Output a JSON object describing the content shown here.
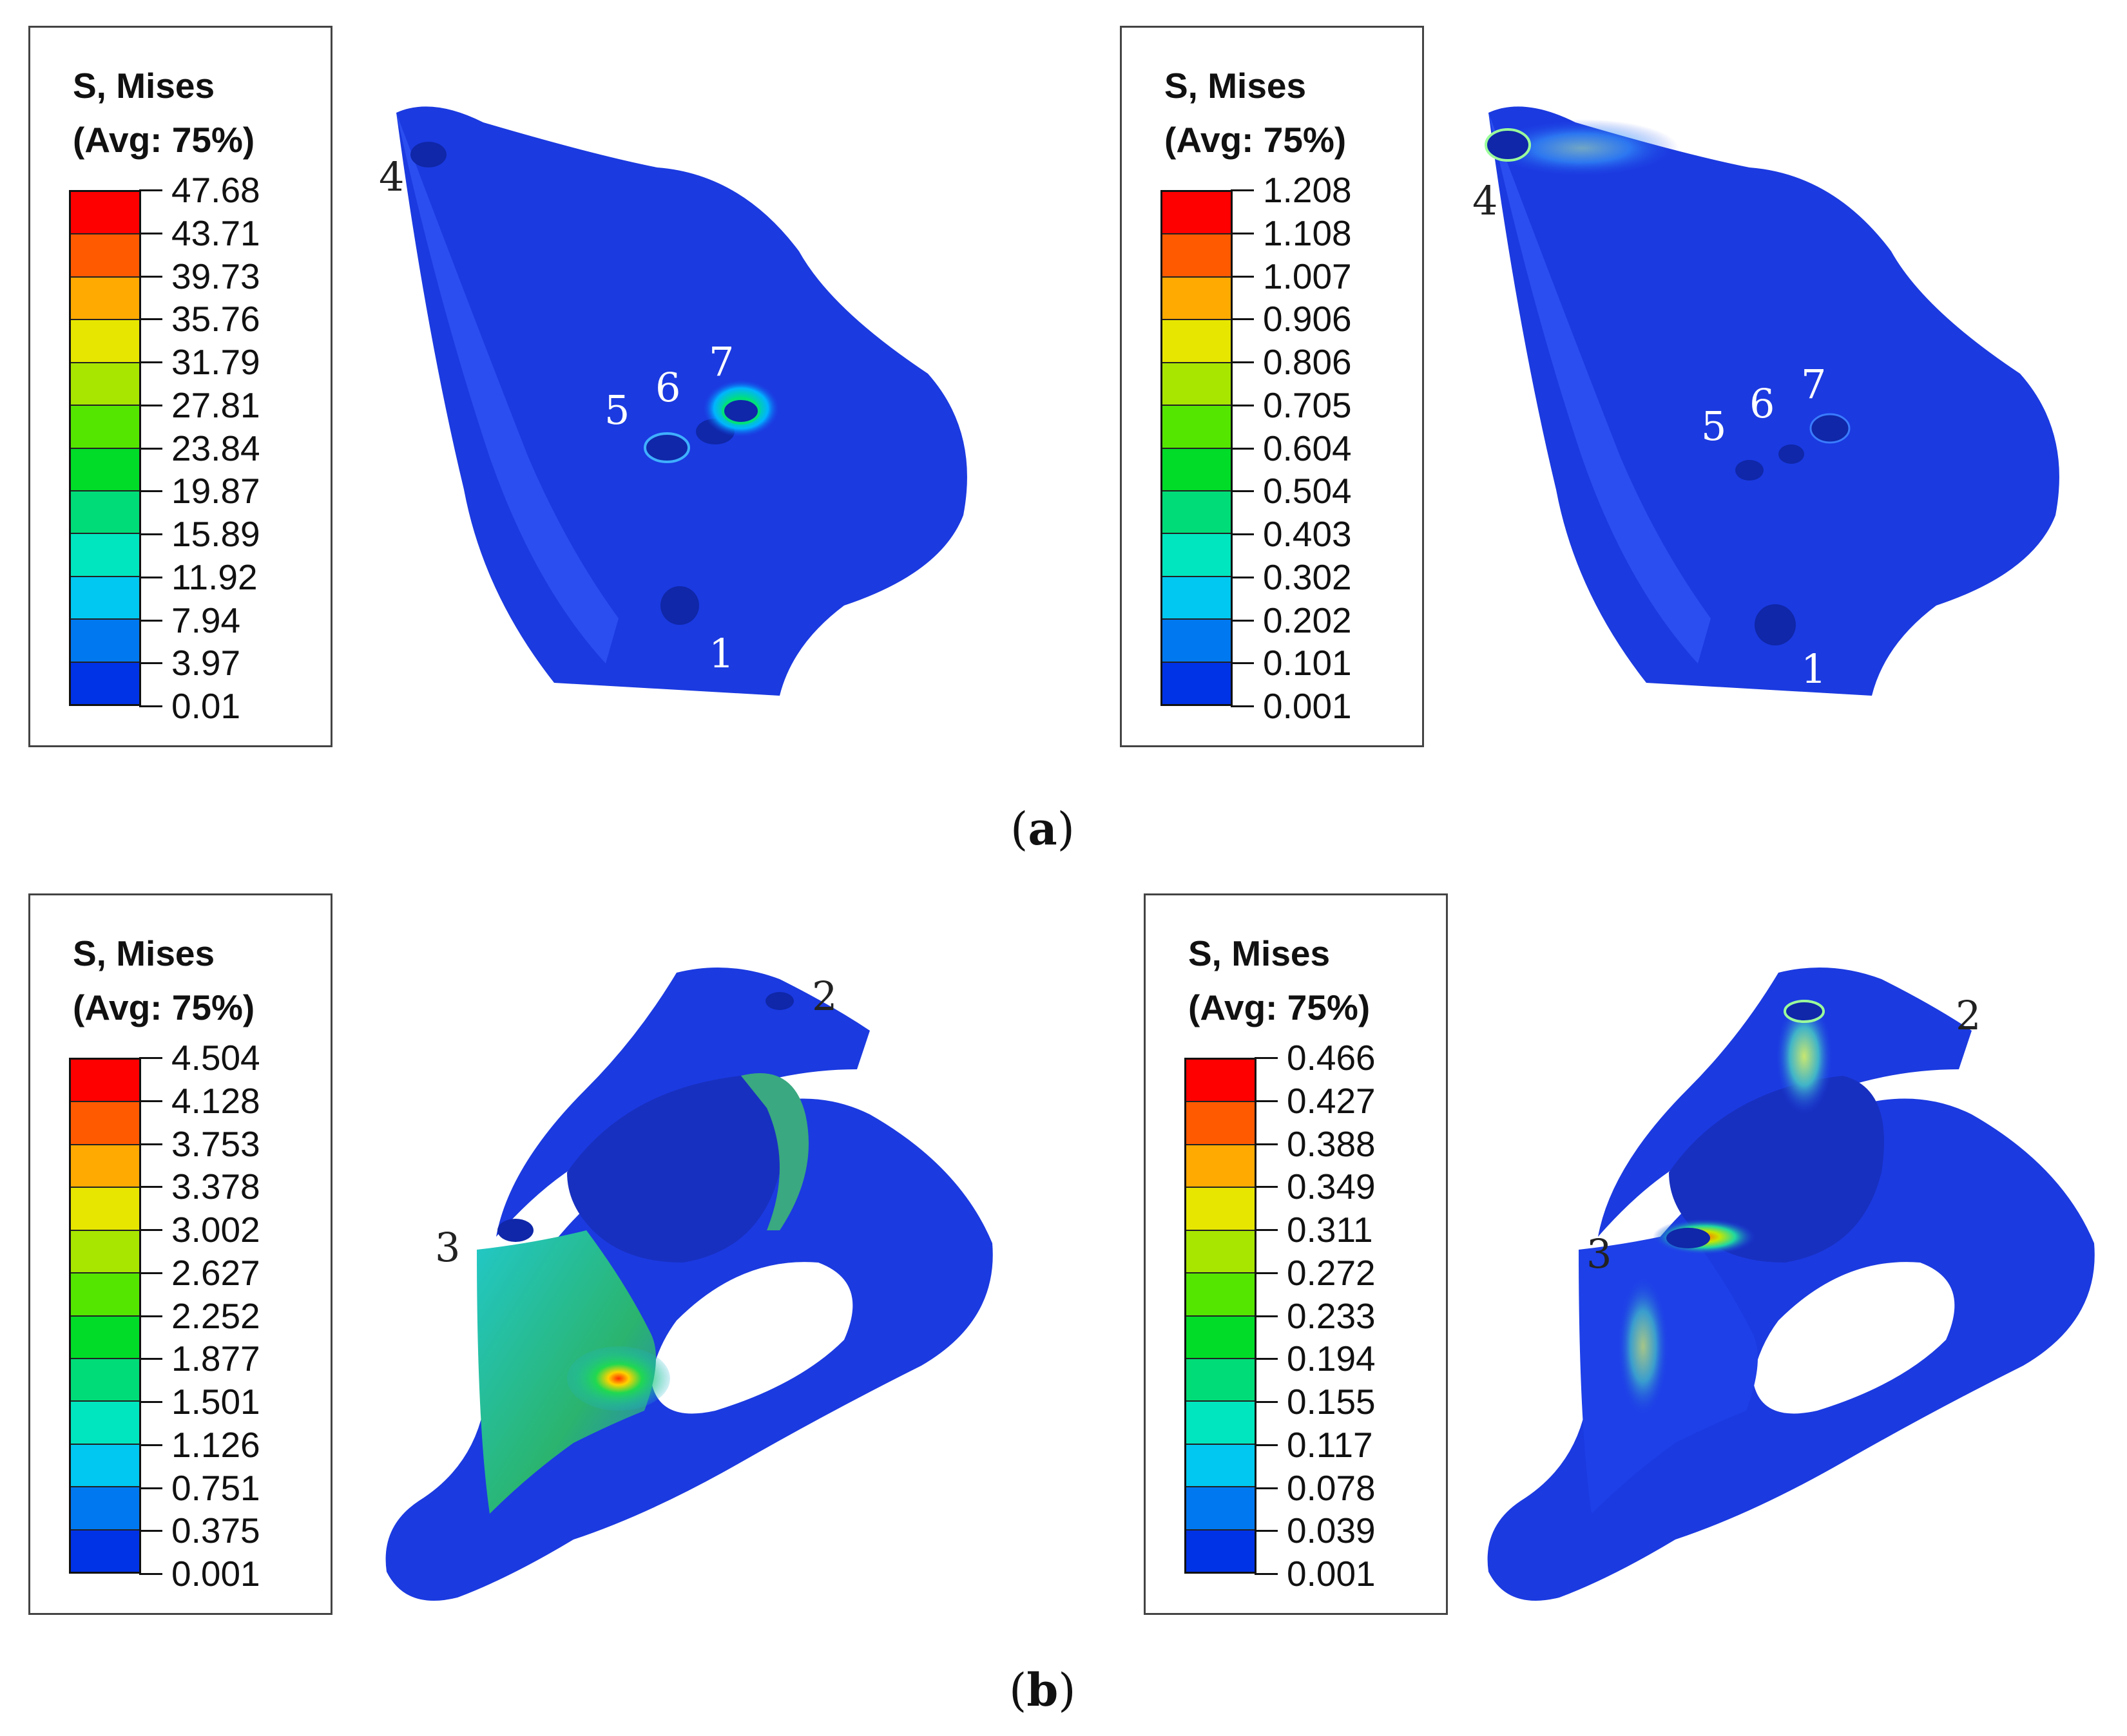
{
  "panels": [
    {
      "label": "a",
      "contours": [
        {
          "title": "S, Mises",
          "subtitle": "(Avg: 75%)",
          "values": [
            "47.68",
            "43.71",
            "39.73",
            "35.76",
            "31.79",
            "27.81",
            "23.84",
            "19.87",
            "15.89",
            "11.92",
            "7.94",
            "3.97",
            "0.01"
          ],
          "callouts": [
            "4",
            "5",
            "6",
            "7",
            "1"
          ]
        },
        {
          "title": "S, Mises",
          "subtitle": "(Avg: 75%)",
          "values": [
            "1.208",
            "1.108",
            "1.007",
            "0.906",
            "0.806",
            "0.705",
            "0.604",
            "0.504",
            "0.403",
            "0.302",
            "0.202",
            "0.101",
            "0.001"
          ],
          "callouts": [
            "4",
            "5",
            "6",
            "7",
            "1"
          ]
        }
      ]
    },
    {
      "label": "b",
      "contours": [
        {
          "title": "S, Mises",
          "subtitle": "(Avg: 75%)",
          "values": [
            "4.504",
            "4.128",
            "3.753",
            "3.378",
            "3.002",
            "2.627",
            "2.252",
            "1.877",
            "1.501",
            "1.126",
            "0.751",
            "0.375",
            "0.001"
          ],
          "callouts": [
            "2",
            "3"
          ]
        },
        {
          "title": "S, Mises",
          "subtitle": "(Avg: 75%)",
          "values": [
            "0.466",
            "0.427",
            "0.388",
            "0.349",
            "0.311",
            "0.272",
            "0.233",
            "0.194",
            "0.155",
            "0.117",
            "0.078",
            "0.039",
            "0.001"
          ],
          "callouts": [
            "2",
            "3"
          ]
        }
      ]
    }
  ],
  "colormap": [
    "#ff0000",
    "#ff5a00",
    "#ffaa00",
    "#e6e600",
    "#a8e600",
    "#55e600",
    "#00dc28",
    "#00dc78",
    "#00e6be",
    "#00c8f0",
    "#0078f0",
    "#0032e6"
  ]
}
